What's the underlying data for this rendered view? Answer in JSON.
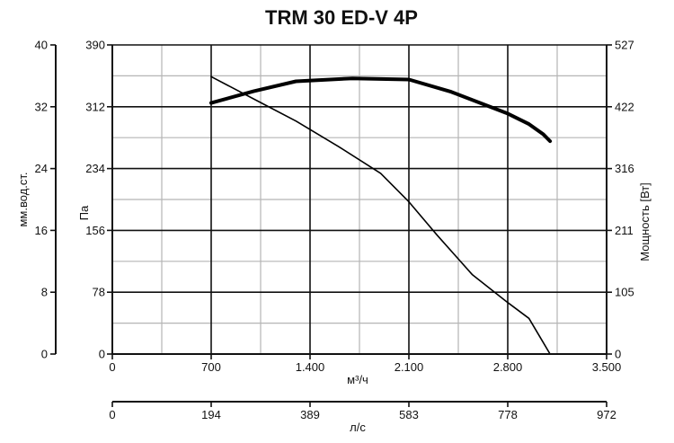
{
  "chart_data": {
    "type": "line",
    "title": "TRM 30 ED-V 4P",
    "x_primary": {
      "label": "м³/ч",
      "range": [
        0,
        3500
      ],
      "ticks": [
        "0",
        "700",
        "1.400",
        "2.100",
        "2.800",
        "3.500"
      ]
    },
    "x_secondary": {
      "label": "л/с",
      "ticks": [
        "0",
        "194",
        "389",
        "583",
        "778",
        "972"
      ]
    },
    "y_pressure": {
      "label": "Па",
      "range": [
        0,
        390
      ],
      "ticks": [
        "0",
        "78",
        "156",
        "234",
        "312",
        "390"
      ]
    },
    "y_water": {
      "label": "мм.вод.ст.",
      "ticks": [
        "0",
        "8",
        "16",
        "24",
        "32",
        "40"
      ]
    },
    "y_power": {
      "label": "Мощность [Вт]",
      "range": [
        0,
        527
      ],
      "ticks": [
        "0",
        "105",
        "211",
        "316",
        "422",
        "527"
      ]
    },
    "grid": true,
    "series": [
      {
        "role": "pressure",
        "axis": "pressure",
        "stroke": "thin",
        "x": [
          700,
          1000,
          1300,
          1600,
          1900,
          2100,
          2300,
          2550,
          2800,
          2950,
          3050,
          3100
        ],
        "y": [
          350,
          322,
          294,
          262,
          228,
          192,
          150,
          100,
          65,
          45,
          15,
          0
        ]
      },
      {
        "role": "power",
        "axis": "power",
        "stroke": "thick",
        "x": [
          700,
          1000,
          1300,
          1700,
          2100,
          2400,
          2800,
          2950,
          3050,
          3100
        ],
        "y": [
          428,
          448,
          465,
          470,
          468,
          447,
          410,
          392,
          375,
          363
        ]
      }
    ]
  }
}
